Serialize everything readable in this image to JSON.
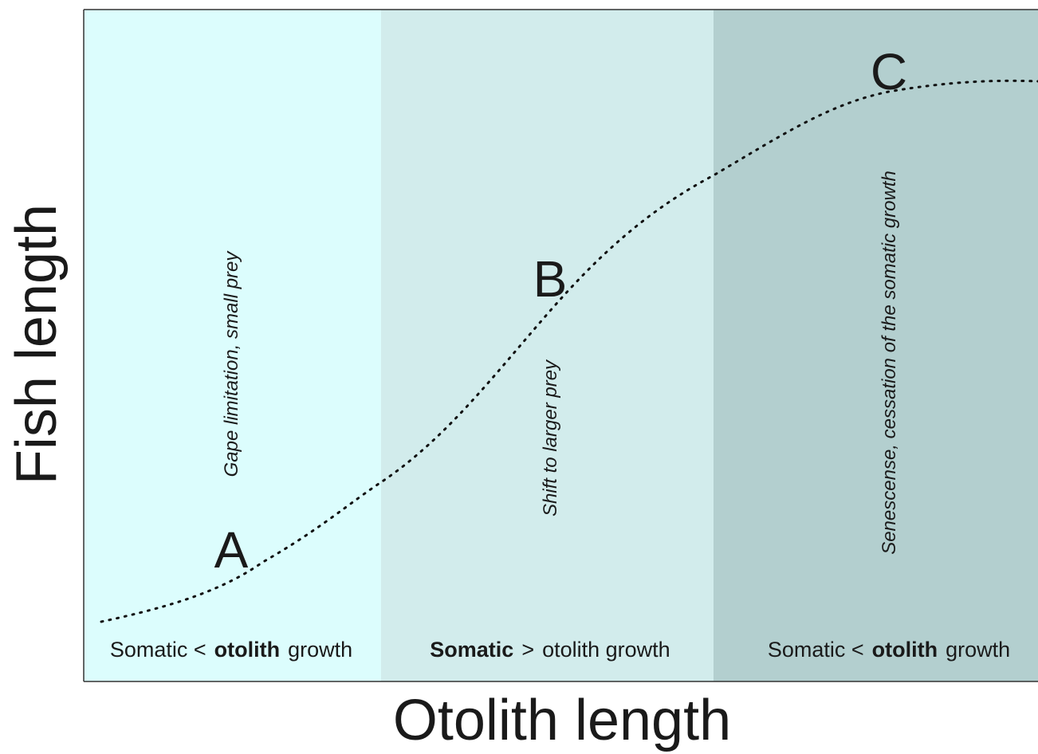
{
  "diagram": {
    "y_axis_label": "Fish length",
    "x_axis_label": "Otolith length",
    "zones": [
      {
        "point": "A",
        "note": "Gape limitation, small prey",
        "footer": [
          {
            "text": "Somatic <",
            "bold": false
          },
          {
            "text": "otolith",
            "bold": true
          },
          {
            "text": "growth",
            "bold": false
          }
        ]
      },
      {
        "point": "B",
        "note": "Shift to larger prey",
        "footer": [
          {
            "text": "Somatic",
            "bold": true
          },
          {
            "text": ">",
            "bold": false
          },
          {
            "text": "otolith growth",
            "bold": false
          }
        ]
      },
      {
        "point": "C",
        "note": "Senescense, cessation of the somatic growth",
        "footer": [
          {
            "text": "Somatic <",
            "bold": false
          },
          {
            "text": "otolith",
            "bold": true
          },
          {
            "text": "growth",
            "bold": false
          }
        ]
      }
    ]
  }
}
